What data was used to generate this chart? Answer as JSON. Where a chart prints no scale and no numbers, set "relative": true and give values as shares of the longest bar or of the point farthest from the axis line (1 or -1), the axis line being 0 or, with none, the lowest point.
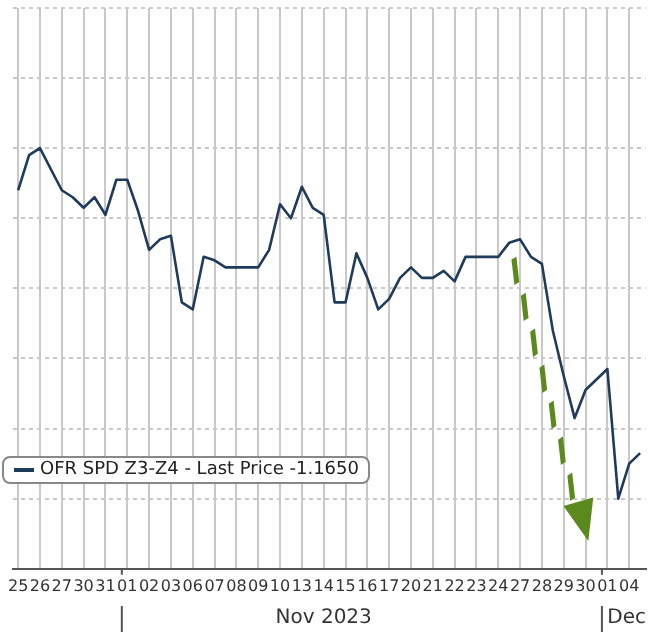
{
  "chart_data": {
    "type": "line",
    "relative": true,
    "categories": [
      "25",
      null,
      "26",
      null,
      "27",
      null,
      "30",
      null,
      "31",
      null,
      "01",
      null,
      "02",
      null,
      "03",
      null,
      "06",
      null,
      "07",
      null,
      "08",
      null,
      "09",
      null,
      "10",
      null,
      "13",
      null,
      "14",
      null,
      "15",
      null,
      "16",
      null,
      "17",
      null,
      "20",
      null,
      "21",
      null,
      "22",
      null,
      "23",
      null,
      "24",
      null,
      "27",
      null,
      "28",
      null,
      "29",
      null,
      "30",
      null,
      "01",
      null,
      "04",
      null
    ],
    "series": [
      {
        "name": "OFR SPD Z3-Z4 - Last Price -1.1650",
        "color": "#1f3b5c",
        "values": [
          0.88,
          0.98,
          1,
          0.94,
          0.88,
          0.86,
          0.83,
          0.86,
          0.81,
          0.91,
          0.91,
          0.82,
          0.71,
          0.74,
          0.75,
          0.56,
          0.54,
          0.69,
          0.68,
          0.66,
          0.66,
          0.66,
          0.66,
          0.71,
          0.84,
          0.8,
          0.89,
          0.83,
          0.81,
          0.56,
          0.56,
          0.7,
          0.63,
          0.54,
          0.57,
          0.63,
          0.66,
          0.63,
          0.63,
          0.65,
          0.62,
          0.69,
          0.69,
          0.69,
          0.69,
          0.73,
          0.74,
          0.69,
          0.67,
          0.48,
          0.35,
          0.23,
          0.31,
          0.34,
          0.37,
          0,
          0.1,
          0.13
        ]
      }
    ],
    "annotations": [
      "Nov 2023",
      "Dec"
    ],
    "grid": true,
    "legend": "bottom left",
    "marker": "none",
    "line_style": "solid"
  }
}
